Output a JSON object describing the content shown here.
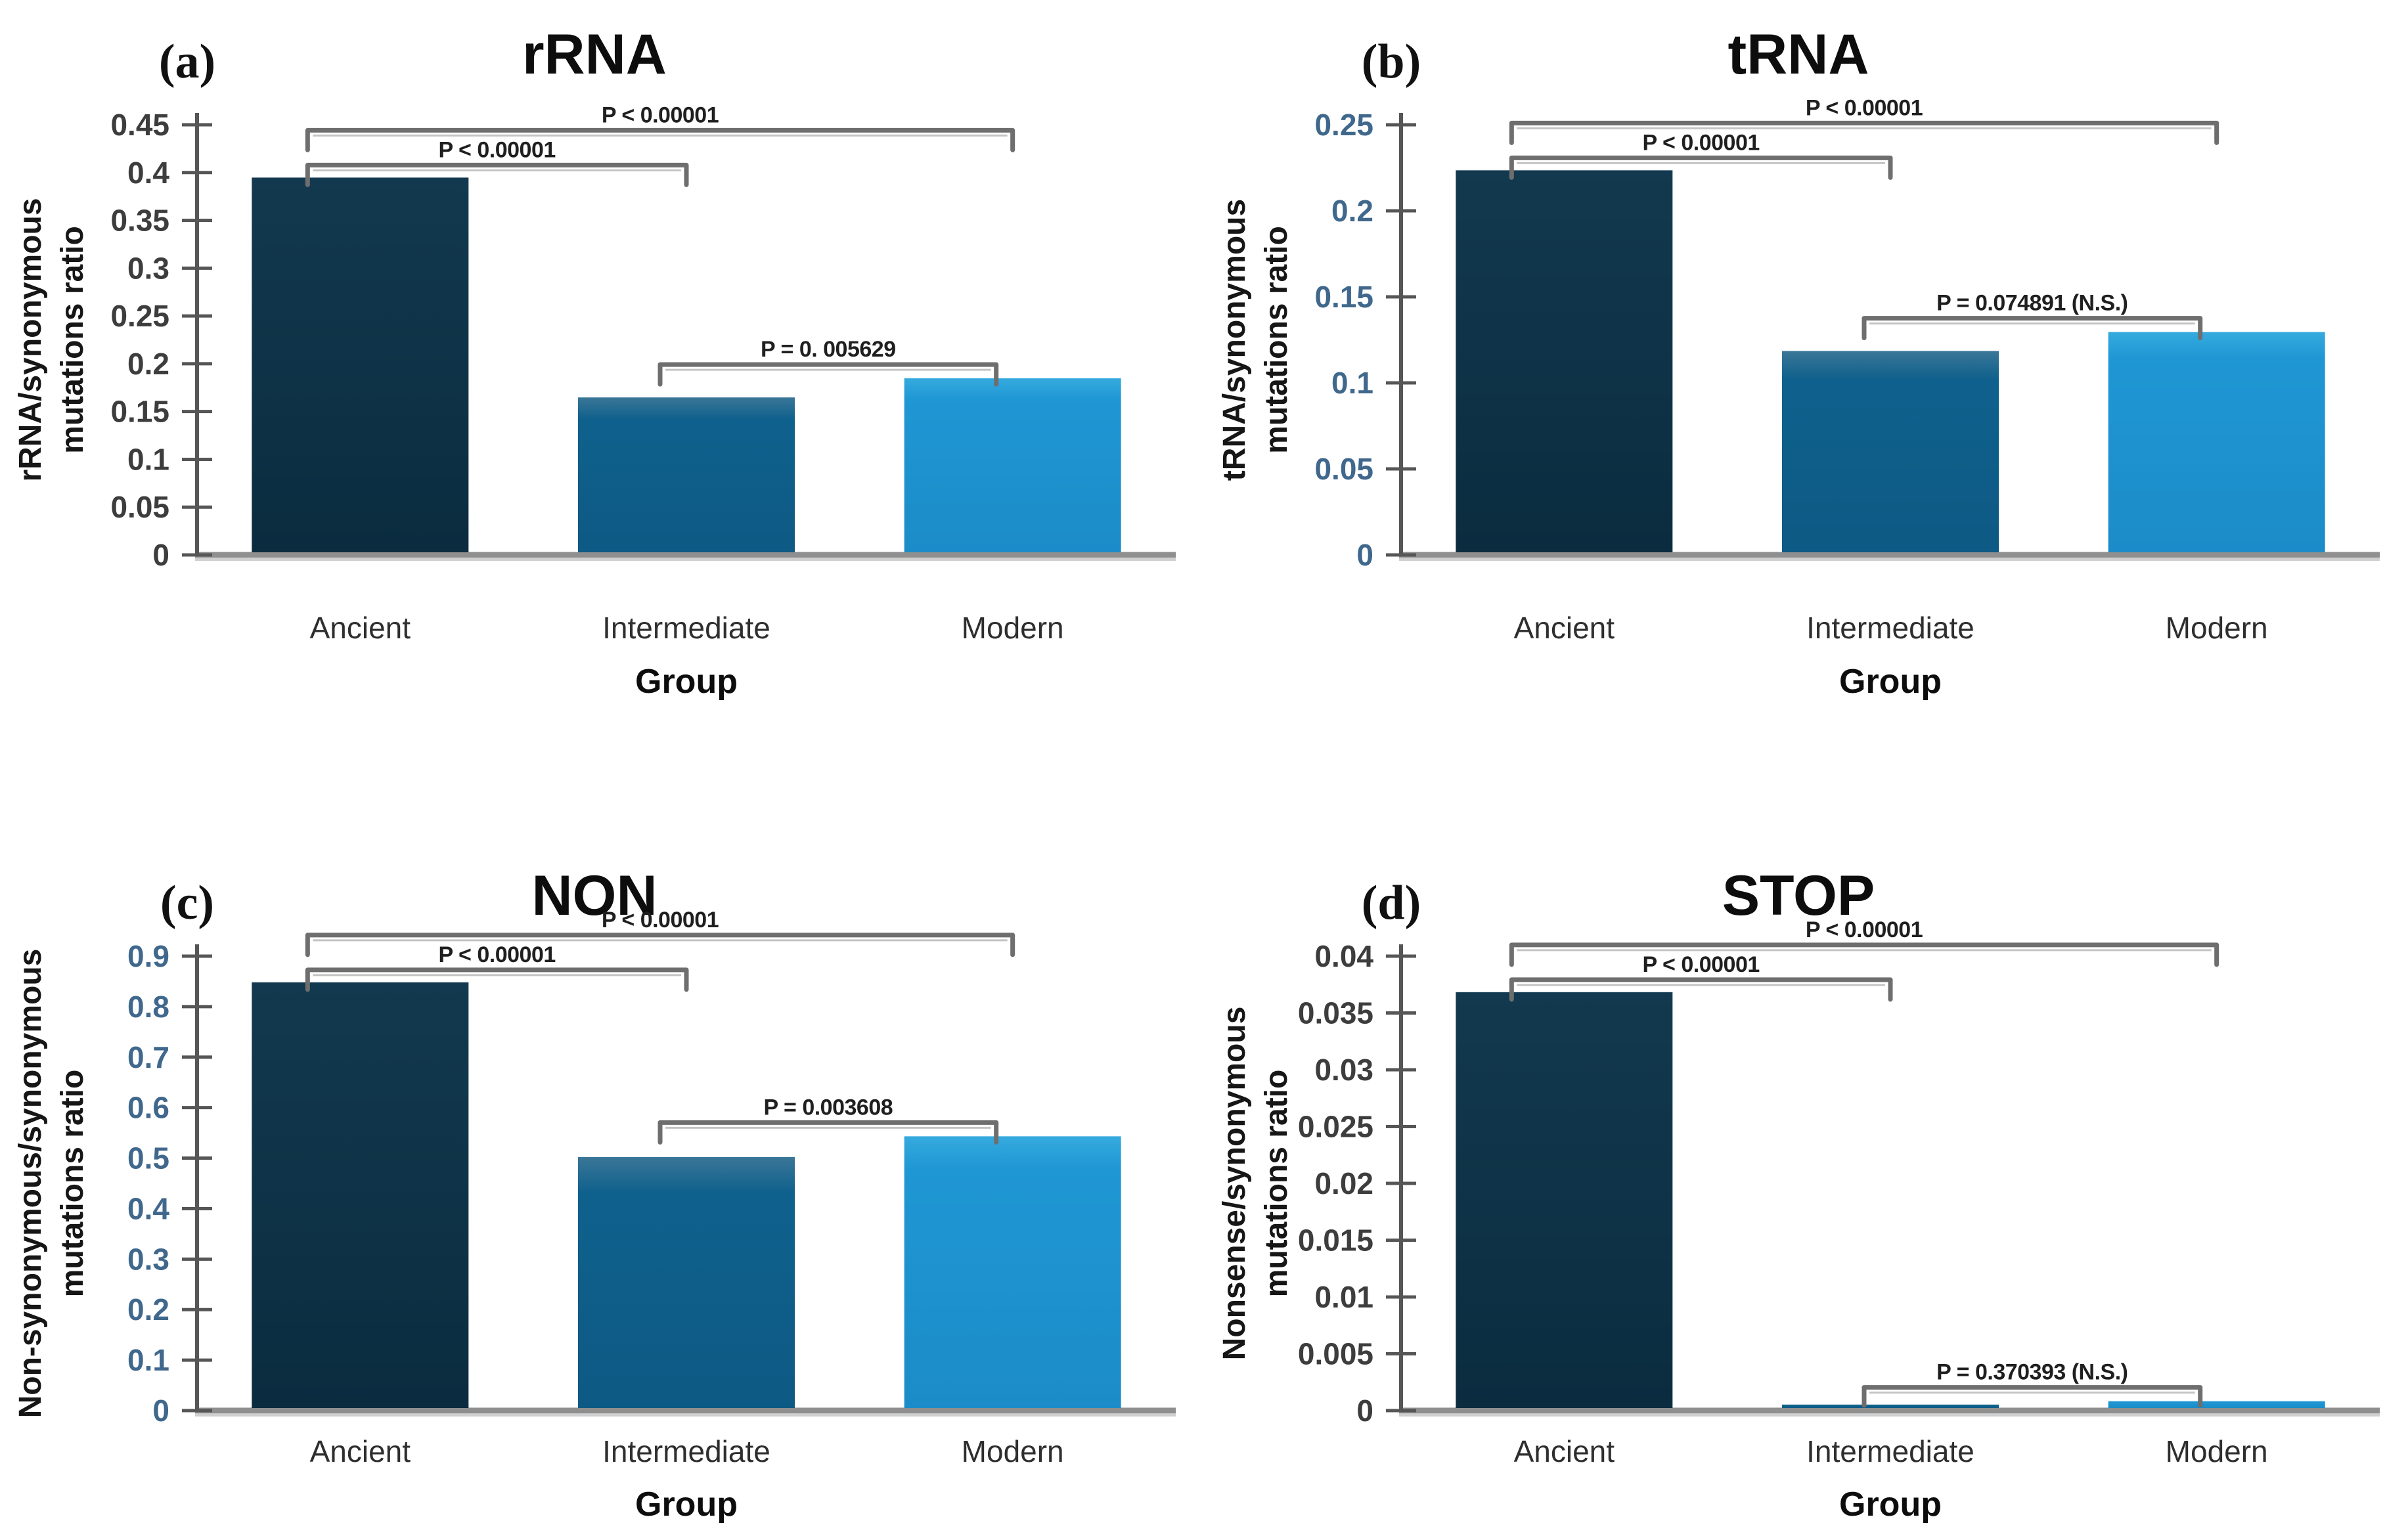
{
  "figure": {
    "description": "Four-panel bar figure comparing mutation ratios across phage groups",
    "background": "#ffffff"
  },
  "colors": {
    "ancient_top": "#12394f",
    "ancient_bottom": "#0b2c3f",
    "intermediate_top": "#3b7697",
    "intermediate_mid": "#0f618d",
    "intermediate_bottom": "#0d5a84",
    "modern_top": "#35aade",
    "modern_mid": "#1f97d4",
    "modern_bottom": "#1b8cc7",
    "axis": "#565656",
    "baseline": "#8f8f8f",
    "baseline_shadow": "#cfcfcf",
    "bracket": "#6e6e6e",
    "bracket_shadow": "#c4c4c4",
    "tick_label_dark": "#3d3d3d",
    "tick_label_blue": "#40688c"
  },
  "chart_data": [
    {
      "id": "a",
      "type": "bar",
      "panel_letter": "(a)",
      "title": "rRNA",
      "ylabel_lines": [
        "rRNA/synonymous",
        "mutations ratio"
      ],
      "xlabel": "Group",
      "categories": [
        "Ancient",
        "Intermediate",
        "Modern"
      ],
      "values": [
        0.392,
        0.162,
        0.182
      ],
      "ylim": [
        0,
        0.45
      ],
      "ytick_labels": [
        "0",
        "0.05",
        "0.1",
        "0.15",
        "0.2",
        "0.25",
        "0.3",
        "0.35",
        "0.4",
        "0.45"
      ],
      "tick_label_style": "dark",
      "bar_styles": [
        "ancient",
        "intermediate",
        "modern"
      ],
      "grid": false,
      "legend": "none",
      "significance": [
        {
          "from": 0,
          "to": 2,
          "level": "outer",
          "label": "P < 0.00001"
        },
        {
          "from": 0,
          "to": 1,
          "level": "inner",
          "label": "P < 0.00001"
        },
        {
          "from": 1,
          "to": 2,
          "level": "pair",
          "label": "P = 0. 005629"
        }
      ]
    },
    {
      "id": "b",
      "type": "bar",
      "panel_letter": "(b)",
      "title": "tRNA",
      "ylabel_lines": [
        "tRNA/synonymous",
        "mutations ratio"
      ],
      "xlabel": "Group",
      "categories": [
        "Ancient",
        "Intermediate",
        "Modern"
      ],
      "values": [
        0.222,
        0.117,
        0.128
      ],
      "ylim": [
        0,
        0.25
      ],
      "ytick_labels": [
        "0",
        "0.05",
        "0.1",
        "0.15",
        "0.2",
        "0.25"
      ],
      "tick_label_style": "blue",
      "bar_styles": [
        "ancient",
        "intermediate",
        "modern"
      ],
      "grid": false,
      "legend": "none",
      "significance": [
        {
          "from": 0,
          "to": 2,
          "level": "outer",
          "label": "P < 0.00001"
        },
        {
          "from": 0,
          "to": 1,
          "level": "inner",
          "label": "P < 0.00001"
        },
        {
          "from": 1,
          "to": 2,
          "level": "pair",
          "label": "P = 0.074891 (N.S.)"
        }
      ]
    },
    {
      "id": "c",
      "type": "bar",
      "panel_letter": "(c)",
      "title": "NON",
      "ylabel_lines": [
        "Non-synonymous/synonymous",
        "mutations ratio"
      ],
      "xlabel": "Group",
      "categories": [
        "Ancient",
        "Intermediate",
        "Modern"
      ],
      "values": [
        0.843,
        0.497,
        0.538
      ],
      "ylim": [
        0,
        0.9
      ],
      "ytick_labels": [
        "0",
        "0.1",
        "0.2",
        "0.3",
        "0.4",
        "0.5",
        "0.6",
        "0.7",
        "0.8",
        "0.9"
      ],
      "tick_label_style": "blue",
      "bar_styles": [
        "ancient",
        "intermediate",
        "modern"
      ],
      "grid": false,
      "legend": "none",
      "significance": [
        {
          "from": 0,
          "to": 2,
          "level": "outer",
          "label": "P < 0.00001"
        },
        {
          "from": 0,
          "to": 1,
          "level": "inner",
          "label": "P < 0.00001"
        },
        {
          "from": 1,
          "to": 2,
          "level": "pair",
          "label": "P = 0.003608"
        }
      ]
    },
    {
      "id": "d",
      "type": "bar",
      "panel_letter": "(d)",
      "title": "STOP",
      "ylabel_lines": [
        "Nonsense/synonymous",
        "mutations ratio"
      ],
      "xlabel": "Group",
      "categories": [
        "Ancient",
        "Intermediate",
        "Modern"
      ],
      "values": [
        0.0366,
        0.0003,
        0.0006
      ],
      "ylim": [
        0,
        0.04
      ],
      "ytick_labels": [
        "0",
        "0.005",
        "0.01",
        "0.015",
        "0.02",
        "0.025",
        "0.03",
        "0.035",
        "0.04"
      ],
      "tick_label_style": "dark",
      "bar_styles": [
        "ancient",
        "intermediate",
        "modern"
      ],
      "grid": false,
      "legend": "none",
      "significance": [
        {
          "from": 0,
          "to": 2,
          "level": "outer",
          "label": "P < 0.00001"
        },
        {
          "from": 0,
          "to": 1,
          "level": "inner",
          "label": "P < 0.00001"
        },
        {
          "from": 1,
          "to": 2,
          "level": "pair",
          "label": "P = 0.370393 (N.S.)"
        }
      ]
    }
  ]
}
